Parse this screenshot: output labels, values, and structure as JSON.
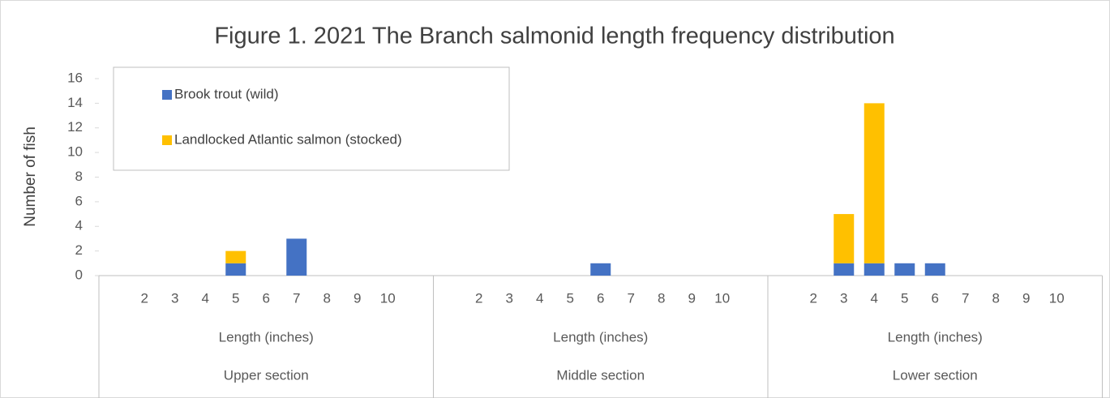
{
  "chart_data": {
    "type": "bar",
    "stacked": true,
    "title": "Figure 1. 2021 The Branch salmonid length frequency distribution",
    "y_label": "Number of fish",
    "ylim": [
      0,
      16
    ],
    "yticks": [
      0,
      2,
      4,
      6,
      8,
      10,
      12,
      14,
      16
    ],
    "grid": false,
    "legend": "upper left",
    "categories": [
      null,
      "2",
      "3",
      "4",
      "5",
      "6",
      "7",
      "8",
      "9",
      "10",
      null,
      null,
      "2",
      "3",
      "4",
      "5",
      "6",
      "7",
      "8",
      "9",
      "10",
      null,
      null,
      "2",
      "3",
      "4",
      "5",
      "6",
      "7",
      "8",
      "9",
      "10",
      null
    ],
    "groups": [
      {
        "label": "Upper section",
        "x_label": "Length (inches)"
      },
      {
        "label": "Middle section",
        "x_label": "Length (inches)"
      },
      {
        "label": "Lower section",
        "x_label": "Length (inches)"
      }
    ],
    "series": [
      {
        "name": "Brook trout (wild)",
        "color": "#4472c4",
        "values": [
          0,
          0,
          0,
          0,
          1,
          0,
          3,
          0,
          0,
          0,
          0,
          0,
          0,
          0,
          0,
          0,
          1,
          0,
          0,
          0,
          0,
          0,
          0,
          0,
          1,
          1,
          1,
          1,
          0,
          0,
          0,
          0,
          0
        ]
      },
      {
        "name": "Landlocked Atlantic salmon (stocked)",
        "color": "#ffc000",
        "values": [
          0,
          0,
          0,
          0,
          1,
          0,
          0,
          0,
          0,
          0,
          0,
          0,
          0,
          0,
          0,
          0,
          0,
          0,
          0,
          0,
          0,
          0,
          0,
          0,
          4,
          13,
          0,
          0,
          0,
          0,
          0,
          0,
          0
        ]
      }
    ]
  }
}
